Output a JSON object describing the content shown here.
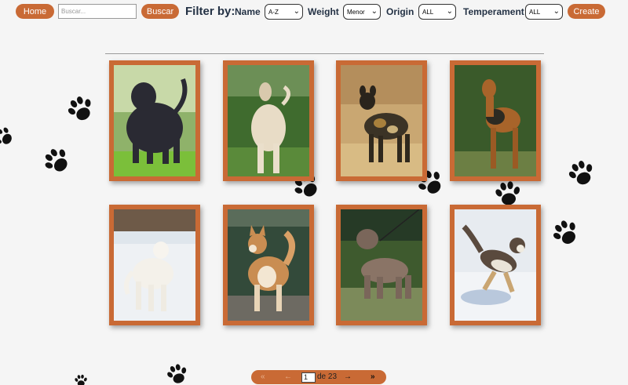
{
  "nav": {
    "home_label": "Home",
    "search_placeholder": "Buscar...",
    "search_label": "Buscar",
    "filter_title": "Filter by:",
    "name_label": "Name",
    "name_value": "A-Z",
    "weight_label": "Weight",
    "weight_value": "Menor",
    "origin_label": "Origin",
    "origin_value": "ALL",
    "temperament_label": "Temperament",
    "temperament_value": "ALL",
    "create_label": "Create"
  },
  "cards": [
    {
      "name": "dog-card-1",
      "icon": "black-shaggy-dog"
    },
    {
      "name": "dog-card-2",
      "icon": "afghan-hound"
    },
    {
      "name": "dog-card-3",
      "icon": "african-wild-dog"
    },
    {
      "name": "dog-card-4",
      "icon": "airedale-terrier"
    },
    {
      "name": "dog-card-5",
      "icon": "white-dog-in-snow"
    },
    {
      "name": "dog-card-6",
      "icon": "akita"
    },
    {
      "name": "dog-card-7",
      "icon": "bully-dog"
    },
    {
      "name": "dog-card-8",
      "icon": "husky-in-snow"
    }
  ],
  "pagination": {
    "first_icon": "«",
    "prev_icon": "←",
    "current_page": "1",
    "of_label": "de 23",
    "next_icon": "→",
    "last_icon": "»"
  },
  "colors": {
    "accent": "#c96a35",
    "heading": "#243245",
    "background": "#f5f5f5"
  }
}
